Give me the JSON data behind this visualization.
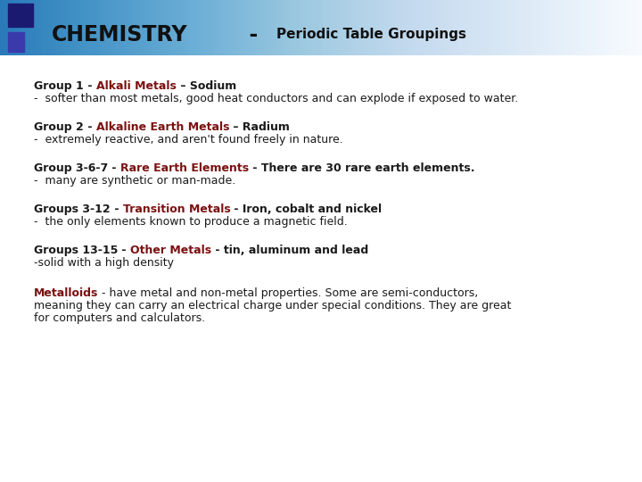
{
  "bg_color": "#ffffff",
  "dark_color": "#1a1a1a",
  "red_color": "#7b1010",
  "body_font_size": 9.0,
  "title_font_size": 17,
  "subtitle_font_size": 11,
  "sections": [
    {
      "bold_prefix": "Group 1",
      "sep": " - ",
      "red_part": "Alkali Metals",
      "black_suffix": " – Sodium",
      "line2": "-  softer than most metals, good heat conductors and can explode if exposed to water."
    },
    {
      "bold_prefix": "Group 2",
      "sep": " - ",
      "red_part": "Alkaline Earth Metals",
      "black_suffix": " – Radium",
      "line2": "-  extremely reactive, and aren't found freely in nature."
    },
    {
      "bold_prefix": "Group 3-6-7",
      "sep": " - ",
      "red_part": "Rare Earth Elements",
      "black_suffix": " - There are 30 rare earth elements.",
      "line2": "-  many are synthetic or man-made."
    },
    {
      "bold_prefix": "Groups 3-12",
      "sep": " - ",
      "red_part": "Transition Metals",
      "black_suffix": " - Iron, cobalt and nickel",
      "line2": "-  the only elements known to produce a magnetic field."
    },
    {
      "bold_prefix": "Groups 13-15",
      "sep": " - ",
      "red_part": "Other Metals",
      "black_suffix": " - tin, aluminum and lead",
      "line2": "-solid with a high density"
    }
  ],
  "metalloids_red": "Metalloids",
  "metalloids_rest": " - have metal and non-metal properties. Some are semi-conductors,",
  "metalloids_line2": "meaning they can carry an electrical charge under special conditions. They are great",
  "metalloids_line3": "for computers and calculators."
}
